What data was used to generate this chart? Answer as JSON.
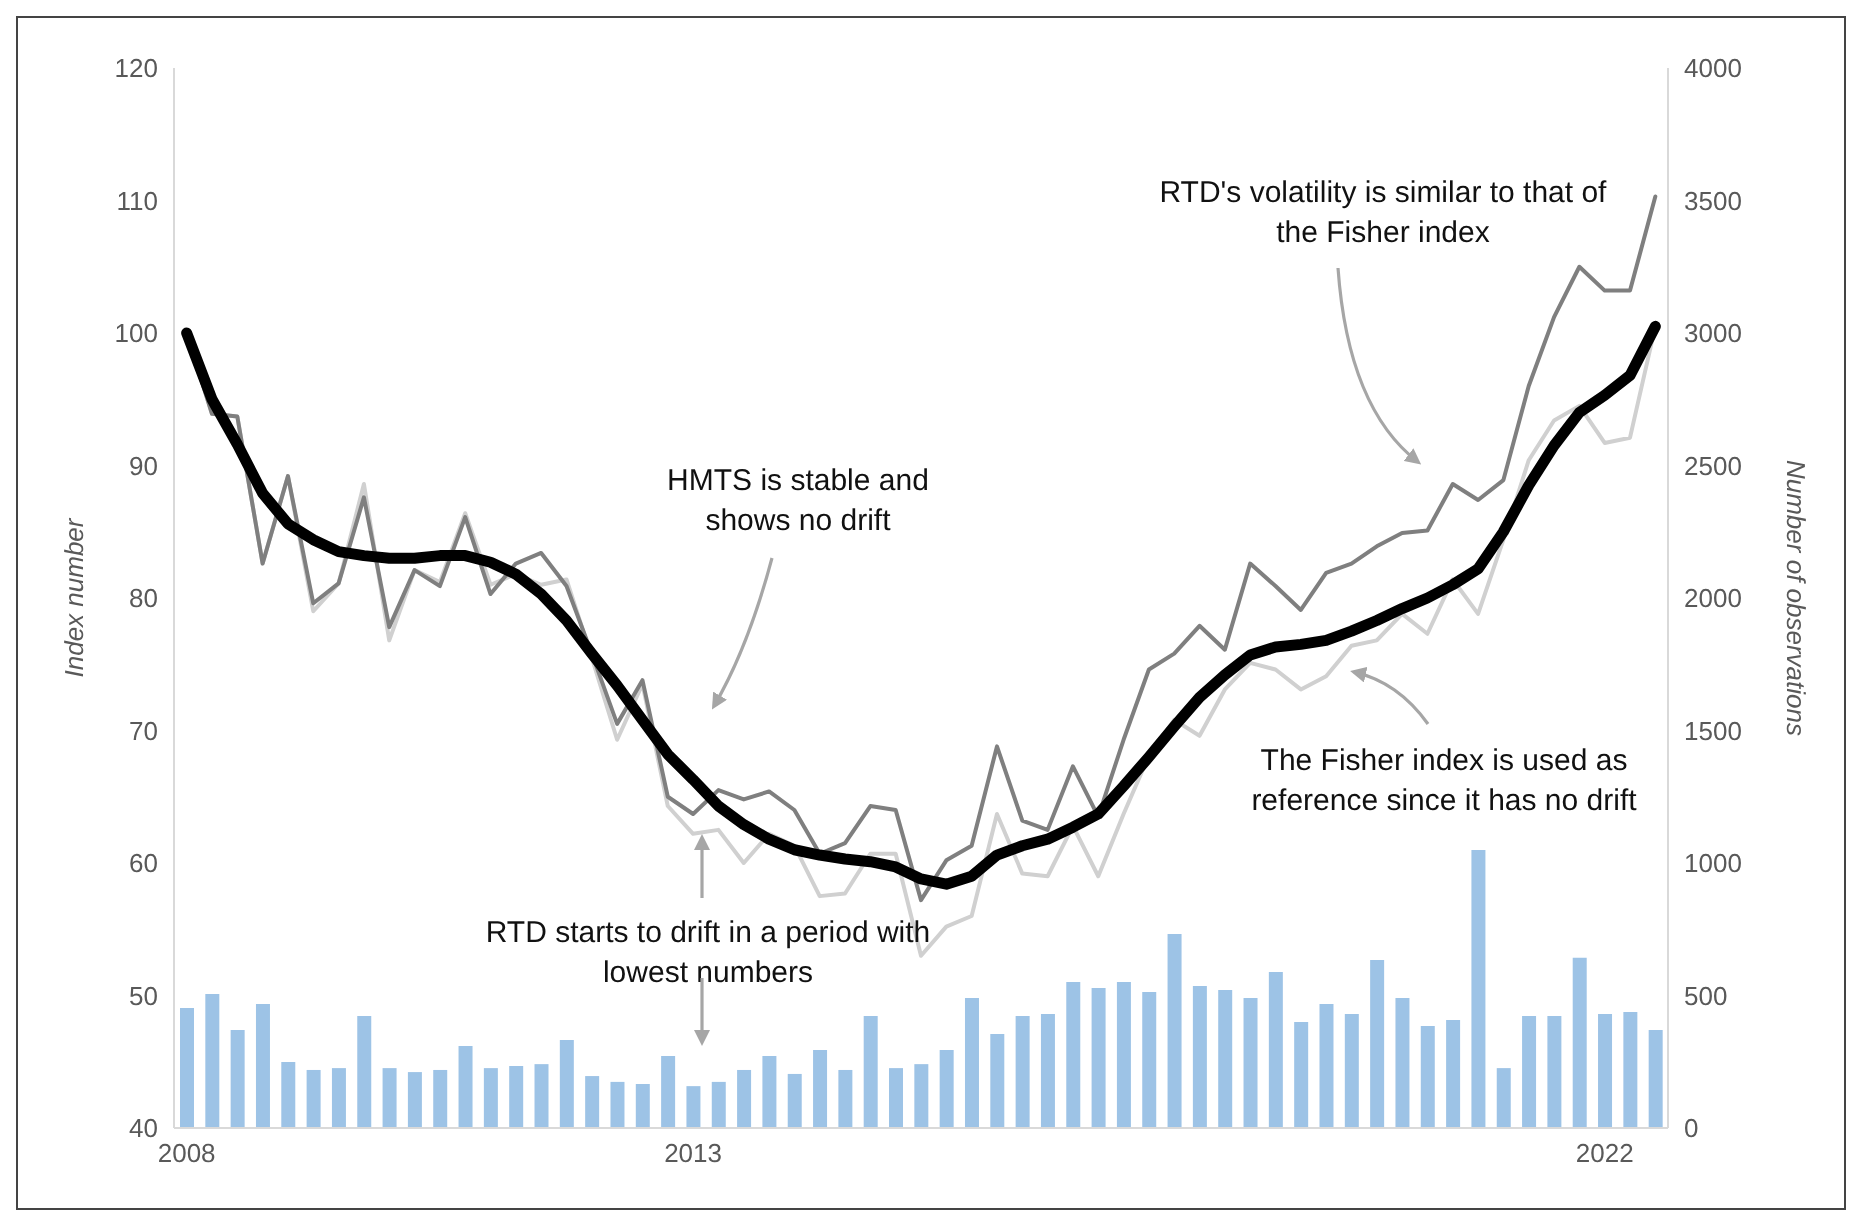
{
  "chart_data": {
    "type": "line",
    "ylabel": "Index number",
    "y2label": "Number of observations",
    "categories": [
      "2008",
      null,
      null,
      null,
      null,
      null,
      null,
      null,
      null,
      null,
      null,
      null,
      null,
      null,
      null,
      null,
      null,
      null,
      null,
      null,
      "2013",
      null,
      null,
      null,
      null,
      null,
      null,
      null,
      null,
      null,
      null,
      null,
      null,
      null,
      null,
      null,
      null,
      null,
      null,
      null,
      null,
      null,
      null,
      null,
      null,
      null,
      null,
      null,
      null,
      null,
      null,
      null,
      null,
      null,
      null,
      null,
      "2022",
      null,
      null
    ],
    "ylim": [
      40,
      120
    ],
    "yticks": [
      40,
      50,
      60,
      70,
      80,
      90,
      100,
      110,
      120
    ],
    "y2lim": [
      0,
      4000
    ],
    "y2ticks": [
      0,
      500,
      1000,
      1500,
      2000,
      2500,
      3000,
      3500,
      4000
    ],
    "series": [
      {
        "type": "bar",
        "axis": "y2",
        "color": "#9dc3e6",
        "values": [
          453,
          506,
          370,
          468,
          249,
          219,
          226,
          423,
          226,
          211,
          219,
          309,
          226,
          234,
          241,
          332,
          196,
          174,
          166,
          272,
          158,
          174,
          219,
          272,
          204,
          294,
          219,
          423,
          226,
          241,
          294,
          491,
          355,
          423,
          430,
          551,
          528,
          551,
          513,
          732,
          536,
          521,
          491,
          589,
          400,
          468,
          430,
          634,
          491,
          385,
          408,
          1049,
          226,
          423,
          423,
          642,
          430,
          438,
          370
        ]
      },
      {
        "color": "#d0d0d0",
        "values": [
          100,
          93.9,
          93.7,
          82.6,
          89.2,
          79.0,
          81.1,
          88.6,
          76.8,
          82.1,
          81.2,
          86.4,
          81.0,
          81.8,
          81.0,
          81.4,
          75.5,
          69.3,
          73.5,
          64.3,
          62.2,
          62.5,
          60.0,
          62.2,
          61.3,
          57.5,
          57.7,
          60.7,
          60.7,
          53.0,
          55.2,
          56.0,
          63.7,
          59.2,
          59.0,
          62.8,
          59.0,
          63.7,
          68.1,
          70.8,
          69.6,
          73.1,
          75.1,
          74.6,
          73.1,
          74.1,
          76.4,
          76.8,
          78.8,
          77.3,
          81.4,
          78.8,
          84.4,
          90.4,
          93.4,
          94.5,
          91.7,
          92.1,
          100.5
        ]
      },
      {
        "color": "#7f7f7f",
        "values": [
          100,
          93.9,
          93.7,
          82.6,
          89.2,
          79.6,
          81.1,
          87.6,
          77.8,
          82.1,
          80.9,
          86.1,
          80.3,
          82.6,
          83.4,
          80.9,
          75.8,
          70.5,
          73.8,
          65.0,
          63.7,
          65.5,
          64.8,
          65.4,
          64.0,
          60.7,
          61.5,
          64.3,
          64.0,
          57.2,
          60.2,
          61.3,
          68.8,
          63.2,
          62.5,
          67.3,
          63.5,
          69.3,
          74.6,
          75.8,
          77.9,
          76.1,
          82.6,
          80.9,
          79.1,
          81.9,
          82.6,
          83.9,
          84.9,
          85.1,
          88.6,
          87.4,
          88.9,
          96.0,
          101.2,
          105.0,
          103.2,
          103.2,
          110.3
        ]
      },
      {
        "color": "#000000",
        "values": [
          100,
          95,
          91.6,
          87.9,
          85.6,
          84.4,
          83.5,
          83.2,
          83.0,
          83.0,
          83.2,
          83.2,
          82.7,
          81.8,
          80.3,
          78.3,
          75.8,
          73.4,
          70.8,
          68.2,
          66.3,
          64.3,
          62.9,
          61.8,
          61.0,
          60.6,
          60.3,
          60.1,
          59.7,
          58.8,
          58.4,
          59.0,
          60.6,
          61.3,
          61.8,
          62.7,
          63.7,
          65.8,
          68.0,
          70.3,
          72.5,
          74.2,
          75.7,
          76.3,
          76.5,
          76.8,
          77.5,
          78.3,
          79.2,
          80.0,
          81.0,
          82.2,
          85.0,
          88.5,
          91.5,
          94.0,
          95.3,
          96.8,
          100.5
        ]
      }
    ],
    "annotations": [
      "HMTS is stable and shows no drift",
      "RTD's volatility is similar to that of the Fisher index",
      "The Fisher index is used as reference since it has no drift",
      "RTD starts to drift in a period with lowest numbers"
    ]
  }
}
